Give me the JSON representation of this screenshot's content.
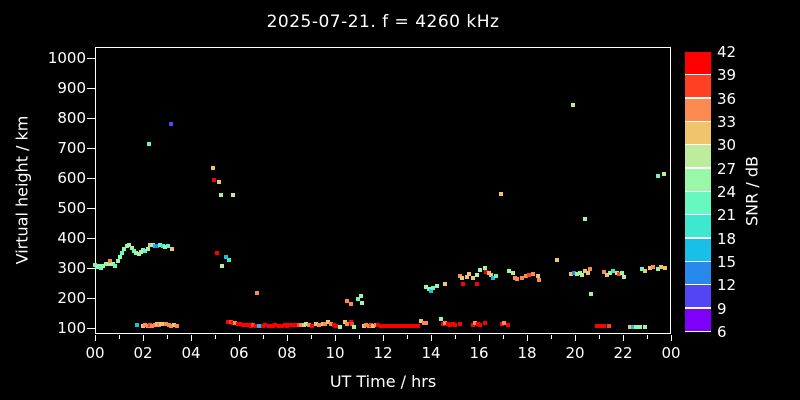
{
  "title": "2025-07-21. f = 4260 kHz",
  "colorbar": {
    "label": "SNR / dB",
    "ticks": [
      42,
      39,
      36,
      33,
      30,
      27,
      24,
      21,
      18,
      15,
      12,
      9,
      6
    ],
    "bins": [
      {
        "min": 6,
        "max": 9,
        "color": "#7d00f8"
      },
      {
        "min": 9,
        "max": 12,
        "color": "#5344f4"
      },
      {
        "min": 12,
        "max": 15,
        "color": "#2888ec"
      },
      {
        "min": 15,
        "max": 18,
        "color": "#18c0e8"
      },
      {
        "min": 18,
        "max": 21,
        "color": "#3ee8d0"
      },
      {
        "min": 21,
        "max": 24,
        "color": "#66f8be"
      },
      {
        "min": 24,
        "max": 27,
        "color": "#98f8a8"
      },
      {
        "min": 27,
        "max": 30,
        "color": "#bcec9c"
      },
      {
        "min": 30,
        "max": 33,
        "color": "#f0c46c"
      },
      {
        "min": 33,
        "max": 36,
        "color": "#fa8a50"
      },
      {
        "min": 36,
        "max": 39,
        "color": "#ff4022"
      },
      {
        "min": 39,
        "max": 42,
        "color": "#ff0000"
      }
    ]
  },
  "chart_data": {
    "type": "scatter",
    "title": "2025-07-21. f = 4260 kHz",
    "xlabel": "UT Time / hrs",
    "ylabel": "Virtual height / km",
    "xlim": [
      0,
      24
    ],
    "ylim": [
      100,
      1000
    ],
    "x_tick_labels": [
      "00",
      "02",
      "04",
      "06",
      "08",
      "10",
      "12",
      "14",
      "16",
      "18",
      "20",
      "22",
      "00"
    ],
    "x_minor_tick_hours": 1,
    "y_ticks": [
      100,
      200,
      300,
      400,
      500,
      600,
      700,
      800,
      900,
      1000
    ],
    "points_format": [
      "ut_hours",
      "virtual_height_km",
      "snr_db"
    ],
    "points": [
      [
        0.0,
        310,
        22
      ],
      [
        0.08,
        302,
        25
      ],
      [
        0.17,
        308,
        25
      ],
      [
        0.25,
        300,
        22
      ],
      [
        0.33,
        307,
        25
      ],
      [
        0.46,
        315,
        25
      ],
      [
        0.58,
        313,
        28
      ],
      [
        0.63,
        322,
        34
      ],
      [
        0.75,
        312,
        25
      ],
      [
        0.83,
        308,
        22
      ],
      [
        0.96,
        324,
        25
      ],
      [
        1.04,
        336,
        25
      ],
      [
        1.13,
        350,
        22
      ],
      [
        1.21,
        362,
        25
      ],
      [
        1.33,
        373,
        25
      ],
      [
        1.42,
        377,
        28
      ],
      [
        1.54,
        367,
        25
      ],
      [
        1.63,
        358,
        22
      ],
      [
        1.71,
        350,
        25
      ],
      [
        1.83,
        346,
        28
      ],
      [
        1.92,
        353,
        25
      ],
      [
        2.0,
        360,
        25
      ],
      [
        2.08,
        356,
        22
      ],
      [
        2.21,
        362,
        25
      ],
      [
        2.29,
        378,
        31
      ],
      [
        2.42,
        376,
        25
      ],
      [
        2.5,
        374,
        16
      ],
      [
        2.58,
        372,
        13
      ],
      [
        2.71,
        376,
        22
      ],
      [
        2.83,
        373,
        19
      ],
      [
        2.92,
        371,
        25
      ],
      [
        3.04,
        373,
        22
      ],
      [
        3.21,
        362,
        31
      ],
      [
        2.25,
        713,
        22
      ],
      [
        3.17,
        780,
        10
      ],
      [
        4.9,
        633,
        31
      ],
      [
        4.95,
        593,
        40
      ],
      [
        5.15,
        587,
        31
      ],
      [
        5.25,
        543,
        25
      ],
      [
        5.75,
        543,
        28
      ],
      [
        5.1,
        350,
        40
      ],
      [
        5.3,
        307,
        28
      ],
      [
        5.45,
        337,
        16
      ],
      [
        5.6,
        327,
        19
      ],
      [
        6.75,
        217,
        34
      ],
      [
        1.75,
        110,
        16
      ],
      [
        2.0,
        108,
        31
      ],
      [
        2.1,
        110,
        34
      ],
      [
        2.21,
        108,
        34
      ],
      [
        2.29,
        110,
        37
      ],
      [
        2.38,
        108,
        34
      ],
      [
        2.5,
        110,
        34
      ],
      [
        2.58,
        113,
        31
      ],
      [
        2.67,
        110,
        34
      ],
      [
        2.75,
        113,
        31
      ],
      [
        2.88,
        115,
        31
      ],
      [
        2.96,
        113,
        34
      ],
      [
        3.08,
        110,
        34
      ],
      [
        3.17,
        108,
        34
      ],
      [
        3.29,
        110,
        31
      ],
      [
        3.42,
        108,
        34
      ],
      [
        5.55,
        120,
        40
      ],
      [
        5.65,
        120,
        37
      ],
      [
        5.75,
        118,
        40
      ],
      [
        5.85,
        117,
        34
      ],
      [
        5.95,
        115,
        40
      ],
      [
        6.05,
        113,
        40
      ],
      [
        6.15,
        111,
        40
      ],
      [
        6.25,
        110,
        40
      ],
      [
        6.4,
        109,
        40
      ],
      [
        6.5,
        108,
        40
      ],
      [
        6.6,
        110,
        37
      ],
      [
        6.7,
        108,
        40
      ],
      [
        6.85,
        108,
        16
      ],
      [
        7.0,
        108,
        40
      ],
      [
        7.1,
        110,
        40
      ],
      [
        7.25,
        108,
        40
      ],
      [
        7.4,
        108,
        40
      ],
      [
        7.5,
        110,
        40
      ],
      [
        7.65,
        108,
        40
      ],
      [
        7.8,
        108,
        40
      ],
      [
        7.9,
        110,
        40
      ],
      [
        8.0,
        108,
        40
      ],
      [
        8.1,
        109,
        40
      ],
      [
        8.25,
        110,
        40
      ],
      [
        8.4,
        109,
        40
      ],
      [
        8.5,
        110,
        37
      ],
      [
        8.6,
        110,
        34
      ],
      [
        8.7,
        110,
        31
      ],
      [
        8.8,
        113,
        28
      ],
      [
        8.9,
        110,
        34
      ],
      [
        9.05,
        107,
        40
      ],
      [
        9.2,
        113,
        31
      ],
      [
        9.35,
        110,
        34
      ],
      [
        9.5,
        115,
        31
      ],
      [
        9.6,
        113,
        34
      ],
      [
        9.7,
        120,
        31
      ],
      [
        9.85,
        115,
        34
      ],
      [
        9.95,
        109,
        40
      ],
      [
        10.05,
        107,
        40
      ],
      [
        10.2,
        104,
        25
      ],
      [
        10.4,
        120,
        31
      ],
      [
        10.5,
        113,
        34
      ],
      [
        10.65,
        120,
        40
      ],
      [
        10.7,
        113,
        37
      ],
      [
        10.8,
        104,
        25
      ],
      [
        11.2,
        107,
        31
      ],
      [
        11.3,
        110,
        34
      ],
      [
        11.4,
        108,
        34
      ],
      [
        11.5,
        110,
        37
      ],
      [
        11.6,
        108,
        31
      ],
      [
        11.7,
        110,
        34
      ],
      [
        11.8,
        110,
        40
      ],
      [
        11.9,
        108,
        40
      ],
      [
        12.0,
        107,
        40
      ],
      [
        12.15,
        108,
        40
      ],
      [
        12.3,
        107,
        40
      ],
      [
        12.45,
        108,
        40
      ],
      [
        12.6,
        107,
        40
      ],
      [
        12.75,
        107,
        40
      ],
      [
        12.9,
        108,
        40
      ],
      [
        13.0,
        107,
        40
      ],
      [
        13.15,
        108,
        40
      ],
      [
        13.3,
        107,
        40
      ],
      [
        13.45,
        108,
        40
      ],
      [
        13.6,
        122,
        31
      ],
      [
        13.7,
        117,
        34
      ],
      [
        13.8,
        116,
        34
      ],
      [
        14.4,
        130,
        25
      ],
      [
        14.5,
        113,
        40
      ],
      [
        14.6,
        118,
        34
      ],
      [
        14.7,
        115,
        40
      ],
      [
        14.8,
        110,
        40
      ],
      [
        14.9,
        113,
        40
      ],
      [
        15.0,
        110,
        40
      ],
      [
        15.2,
        113,
        40
      ],
      [
        15.75,
        110,
        40
      ],
      [
        15.85,
        117,
        34
      ],
      [
        15.95,
        113,
        40
      ],
      [
        16.05,
        110,
        40
      ],
      [
        16.25,
        117,
        40
      ],
      [
        16.95,
        113,
        40
      ],
      [
        17.05,
        117,
        34
      ],
      [
        17.2,
        110,
        40
      ],
      [
        20.9,
        108,
        40
      ],
      [
        21.05,
        106,
        40
      ],
      [
        21.2,
        108,
        40
      ],
      [
        21.4,
        106,
        37
      ],
      [
        22.3,
        105,
        31
      ],
      [
        22.42,
        105,
        16
      ],
      [
        22.55,
        105,
        25
      ],
      [
        22.72,
        103,
        25
      ],
      [
        22.9,
        103,
        25
      ],
      [
        10.5,
        190,
        34
      ],
      [
        10.67,
        180,
        34
      ],
      [
        10.96,
        197,
        22
      ],
      [
        11.08,
        207,
        25
      ],
      [
        11.12,
        183,
        28
      ],
      [
        13.8,
        237,
        25
      ],
      [
        13.9,
        230,
        25
      ],
      [
        14.0,
        223,
        16
      ],
      [
        14.1,
        233,
        22
      ],
      [
        14.25,
        240,
        25
      ],
      [
        14.6,
        247,
        31
      ],
      [
        15.2,
        273,
        34
      ],
      [
        15.3,
        267,
        31
      ],
      [
        15.35,
        247,
        40
      ],
      [
        15.5,
        270,
        31
      ],
      [
        15.6,
        280,
        31
      ],
      [
        15.75,
        267,
        31
      ],
      [
        15.9,
        277,
        28
      ],
      [
        15.92,
        247,
        40
      ],
      [
        16.05,
        293,
        25
      ],
      [
        16.25,
        300,
        25
      ],
      [
        16.3,
        287,
        40
      ],
      [
        16.4,
        283,
        31
      ],
      [
        16.5,
        277,
        31
      ],
      [
        16.6,
        267,
        16
      ],
      [
        16.7,
        273,
        22
      ],
      [
        17.25,
        290,
        25
      ],
      [
        17.4,
        283,
        28
      ],
      [
        17.5,
        267,
        34
      ],
      [
        17.6,
        263,
        34
      ],
      [
        17.8,
        267,
        34
      ],
      [
        17.95,
        273,
        34
      ],
      [
        18.1,
        277,
        37
      ],
      [
        18.25,
        280,
        34
      ],
      [
        18.45,
        273,
        31
      ],
      [
        18.5,
        260,
        34
      ],
      [
        19.25,
        327,
        31
      ],
      [
        19.83,
        280,
        31
      ],
      [
        19.95,
        283,
        13
      ],
      [
        20.08,
        280,
        25
      ],
      [
        20.2,
        283,
        25
      ],
      [
        20.3,
        277,
        28
      ],
      [
        20.4,
        290,
        31
      ],
      [
        20.55,
        283,
        31
      ],
      [
        20.63,
        297,
        34
      ],
      [
        20.67,
        213,
        25
      ],
      [
        21.2,
        287,
        34
      ],
      [
        21.33,
        277,
        31
      ],
      [
        21.46,
        283,
        25
      ],
      [
        21.58,
        290,
        19
      ],
      [
        21.75,
        283,
        28
      ],
      [
        21.83,
        280,
        37
      ],
      [
        21.96,
        283,
        25
      ],
      [
        22.05,
        270,
        28
      ],
      [
        22.8,
        297,
        22
      ],
      [
        22.92,
        290,
        31
      ],
      [
        23.12,
        300,
        31
      ],
      [
        23.25,
        303,
        34
      ],
      [
        23.46,
        297,
        25
      ],
      [
        23.58,
        303,
        31
      ],
      [
        23.75,
        300,
        31
      ],
      [
        16.9,
        547,
        31
      ],
      [
        19.9,
        843,
        28
      ],
      [
        20.4,
        463,
        25
      ],
      [
        23.45,
        607,
        22
      ],
      [
        23.7,
        613,
        28
      ]
    ]
  }
}
